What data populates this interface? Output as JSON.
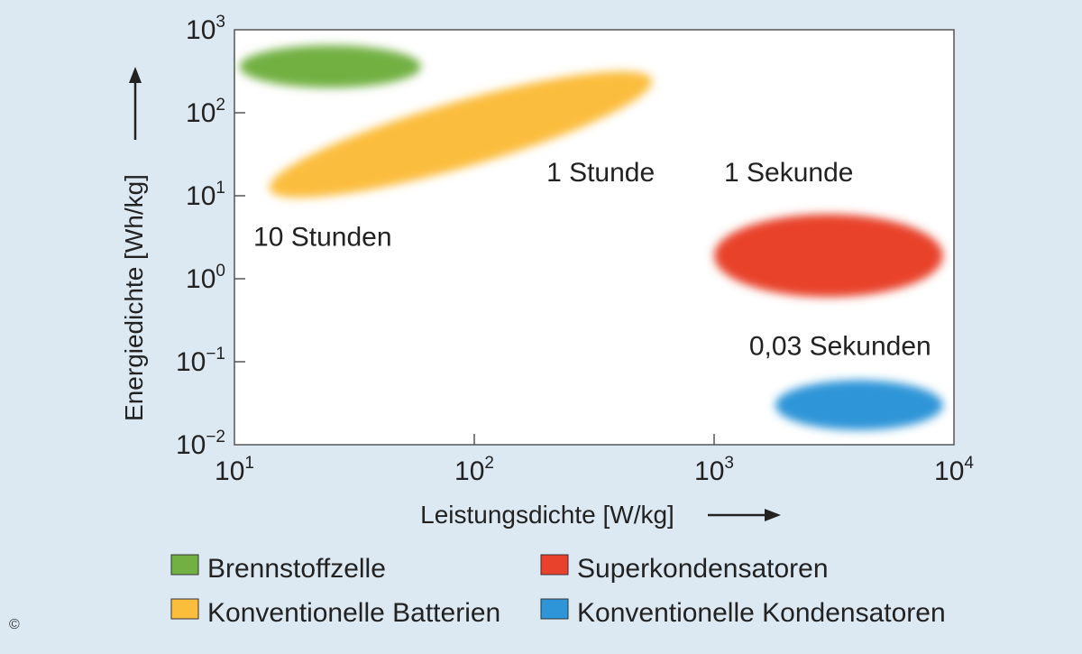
{
  "chart_data": {
    "type": "scatter",
    "xlabel": "Leistungsdichte [W/kg]",
    "ylabel": "Energiedichte [Wh/kg]",
    "x_scale": "log",
    "y_scale": "log",
    "xlim": [
      10,
      10000
    ],
    "ylim": [
      0.01,
      1000
    ],
    "x_ticks": [
      {
        "base": "10",
        "exp": "1",
        "value": 10
      },
      {
        "base": "10",
        "exp": "2",
        "value": 100
      },
      {
        "base": "10",
        "exp": "3",
        "value": 1000
      },
      {
        "base": "10",
        "exp": "4",
        "value": 10000
      }
    ],
    "y_ticks": [
      {
        "base": "10",
        "exp": "3",
        "value": 1000
      },
      {
        "base": "10",
        "exp": "2",
        "value": 100
      },
      {
        "base": "10",
        "exp": "1",
        "value": 10
      },
      {
        "base": "10",
        "exp": "0",
        "value": 1
      },
      {
        "base": "10",
        "exp": "−1",
        "value": 0.1
      },
      {
        "base": "10",
        "exp": "−2",
        "value": 0.01
      }
    ],
    "grid": false,
    "legend_position": "bottom",
    "series": [
      {
        "name": "Brennstoffzelle",
        "color": "#72b043",
        "x_range": [
          10.5,
          60
        ],
        "y_range": [
          200,
          650
        ]
      },
      {
        "name": "Konventionelle Batterien",
        "color": "#fbbd3c",
        "x_range": [
          14,
          550
        ],
        "y_range": [
          12,
          250
        ],
        "tilt": "rising"
      },
      {
        "name": "Superkondensatoren",
        "color": "#e8422c",
        "x_range": [
          1000,
          9000
        ],
        "y_range": [
          0.6,
          6
        ]
      },
      {
        "name": "Konventionelle Kondensatoren",
        "color": "#2d95d8",
        "x_range": [
          1800,
          9000
        ],
        "y_range": [
          0.015,
          0.06
        ]
      }
    ],
    "annotations": [
      {
        "text": "10 Stunden",
        "x": 12,
        "y": 2.5
      },
      {
        "text": "1 Stunde",
        "x": 200,
        "y": 15
      },
      {
        "text": "1 Sekunde",
        "x": 1100,
        "y": 15
      },
      {
        "text": "0,03 Sekunden",
        "x": 1400,
        "y": 0.12
      }
    ]
  },
  "copyright": "©"
}
